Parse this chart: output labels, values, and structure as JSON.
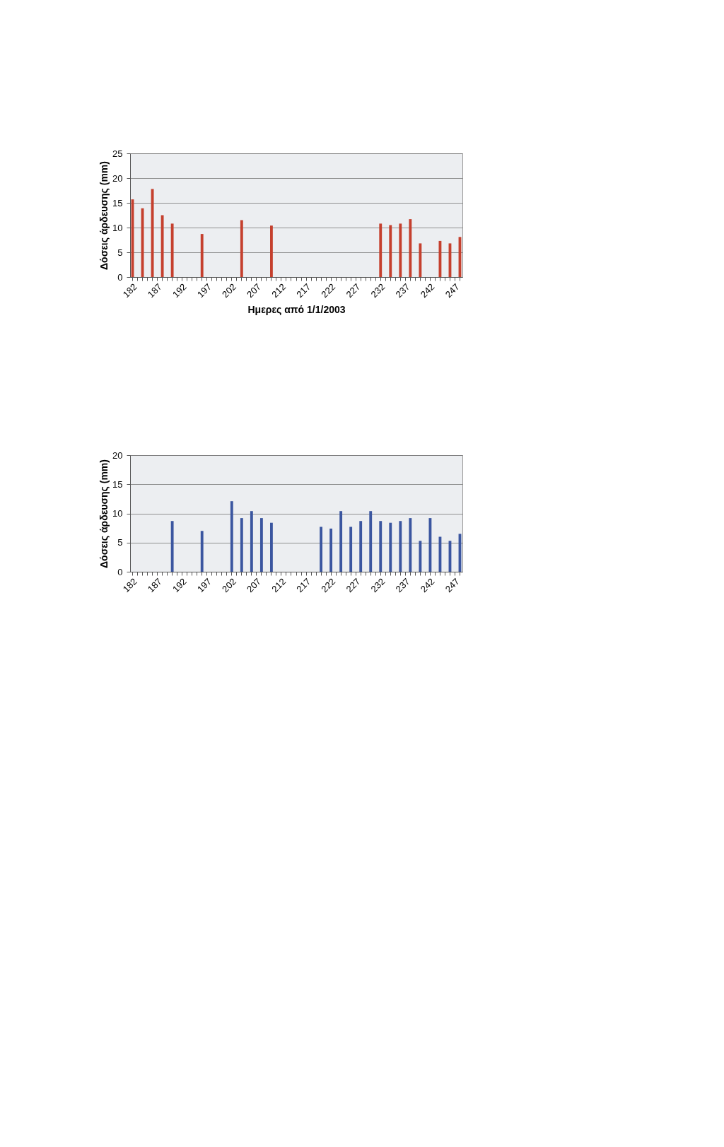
{
  "chart_data": [
    {
      "type": "bar",
      "xlabel": "Ημερες από 1/1/2003",
      "ylabel": "Δόσεις άρδευσης (mm)",
      "color": "#c5402e",
      "ylim": [
        0,
        25
      ],
      "yticks": [
        0,
        5,
        10,
        15,
        20,
        25
      ],
      "grid": "y",
      "categories": [
        "182",
        null,
        null,
        null,
        null,
        "187",
        null,
        null,
        null,
        null,
        "192",
        null,
        null,
        null,
        null,
        "197",
        null,
        null,
        null,
        null,
        "202",
        null,
        null,
        null,
        null,
        "207",
        null,
        null,
        null,
        null,
        "212",
        null,
        null,
        null,
        null,
        "217",
        null,
        null,
        null,
        null,
        "222",
        null,
        null,
        null,
        null,
        "227",
        null,
        null,
        null,
        null,
        "232",
        null,
        null,
        null,
        null,
        "237",
        null,
        null,
        null,
        null,
        "242",
        null,
        null,
        null,
        null,
        "247",
        null
      ],
      "values": [
        15.7,
        null,
        13.9,
        null,
        17.8,
        null,
        12.5,
        null,
        10.8,
        null,
        null,
        null,
        null,
        null,
        8.7,
        null,
        null,
        null,
        null,
        null,
        null,
        null,
        11.5,
        null,
        null,
        null,
        null,
        null,
        10.4,
        null,
        null,
        null,
        null,
        null,
        null,
        null,
        null,
        null,
        null,
        null,
        null,
        null,
        null,
        null,
        null,
        null,
        null,
        null,
        null,
        null,
        10.8,
        null,
        10.5,
        null,
        10.8,
        null,
        11.7,
        null,
        6.8,
        null,
        null,
        null,
        7.3,
        null,
        6.8,
        null,
        8.1
      ]
    },
    {
      "type": "bar",
      "ylabel": "Δόσεις άρδευσης (mm)",
      "color": "#3b56a0",
      "ylim": [
        0,
        20
      ],
      "yticks": [
        0,
        5,
        10,
        15,
        20
      ],
      "grid": "y",
      "categories": [
        "182",
        null,
        null,
        null,
        null,
        "187",
        null,
        null,
        null,
        null,
        "192",
        null,
        null,
        null,
        null,
        "197",
        null,
        null,
        null,
        null,
        "202",
        null,
        null,
        null,
        null,
        "207",
        null,
        null,
        null,
        null,
        "212",
        null,
        null,
        null,
        null,
        "217",
        null,
        null,
        null,
        null,
        "222",
        null,
        null,
        null,
        null,
        "227",
        null,
        null,
        null,
        null,
        "232",
        null,
        null,
        null,
        null,
        "237",
        null,
        null,
        null,
        null,
        "242",
        null,
        null,
        null,
        null,
        "247",
        null
      ],
      "values": [
        null,
        null,
        null,
        null,
        null,
        null,
        null,
        null,
        8.7,
        null,
        null,
        null,
        null,
        null,
        7.0,
        null,
        null,
        null,
        null,
        null,
        12.1,
        null,
        9.2,
        null,
        10.4,
        null,
        9.2,
        null,
        8.4,
        null,
        null,
        null,
        null,
        null,
        null,
        null,
        null,
        null,
        7.7,
        null,
        7.4,
        null,
        10.4,
        null,
        7.7,
        null,
        8.7,
        null,
        10.4,
        null,
        8.7,
        null,
        8.4,
        null,
        8.7,
        null,
        9.2,
        null,
        5.3,
        null,
        9.2,
        null,
        6.0,
        null,
        5.3,
        null,
        6.5
      ]
    }
  ]
}
